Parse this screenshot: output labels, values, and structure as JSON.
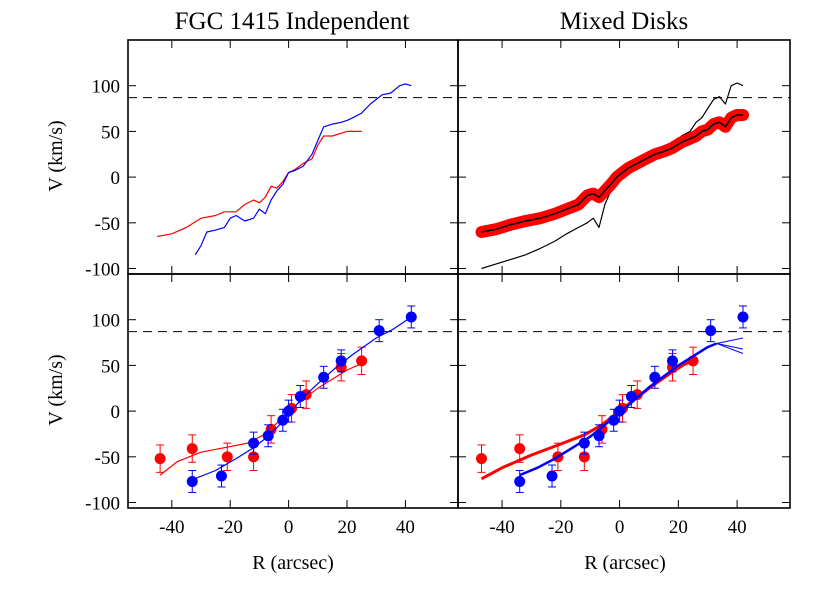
{
  "chart_data": [
    {
      "type": "line",
      "panel": "top-left",
      "title": "FGC 1415 Independent",
      "ylabel": "V (km/s)",
      "xlim": [
        -55,
        58
      ],
      "ylim": [
        -106,
        150
      ],
      "yticks": [
        -100,
        -50,
        0,
        50,
        100
      ],
      "reference_line": 87,
      "series": [
        {
          "color": "#ff0000",
          "points": [
            [
              -45,
              -65
            ],
            [
              -40,
              -62
            ],
            [
              -35,
              -55
            ],
            [
              -30,
              -45
            ],
            [
              -25,
              -42
            ],
            [
              -22,
              -38
            ],
            [
              -18,
              -38
            ],
            [
              -15,
              -30
            ],
            [
              -12,
              -25
            ],
            [
              -10,
              -28
            ],
            [
              -8,
              -22
            ],
            [
              -6,
              -10
            ],
            [
              -4,
              -12
            ],
            [
              -2,
              -5
            ],
            [
              0,
              5
            ],
            [
              2,
              8
            ],
            [
              5,
              15
            ],
            [
              8,
              20
            ],
            [
              10,
              35
            ],
            [
              12,
              45
            ],
            [
              15,
              45
            ],
            [
              18,
              48
            ],
            [
              20,
              50
            ],
            [
              22,
              50
            ],
            [
              25,
              50
            ]
          ]
        },
        {
          "color": "#0000ff",
          "points": [
            [
              -32,
              -85
            ],
            [
              -30,
              -75
            ],
            [
              -28,
              -60
            ],
            [
              -25,
              -58
            ],
            [
              -22,
              -55
            ],
            [
              -20,
              -45
            ],
            [
              -18,
              -42
            ],
            [
              -15,
              -48
            ],
            [
              -12,
              -45
            ],
            [
              -10,
              -35
            ],
            [
              -8,
              -40
            ],
            [
              -6,
              -25
            ],
            [
              -4,
              -15
            ],
            [
              -2,
              -8
            ],
            [
              0,
              5
            ],
            [
              2,
              7
            ],
            [
              5,
              12
            ],
            [
              8,
              25
            ],
            [
              10,
              40
            ],
            [
              12,
              55
            ],
            [
              15,
              58
            ],
            [
              18,
              60
            ],
            [
              20,
              62
            ],
            [
              22,
              65
            ],
            [
              25,
              70
            ],
            [
              28,
              80
            ],
            [
              30,
              85
            ],
            [
              32,
              90
            ],
            [
              35,
              92
            ],
            [
              38,
              100
            ],
            [
              40,
              102
            ],
            [
              42,
              100
            ]
          ]
        }
      ]
    },
    {
      "type": "line",
      "panel": "top-right",
      "title": "Mixed Disks",
      "xlim": [
        -55,
        58
      ],
      "ylim": [
        -106,
        150
      ],
      "reference_line": 87,
      "series": [
        {
          "color": "#000000",
          "points": [
            [
              -47,
              -100
            ],
            [
              -42,
              -95
            ],
            [
              -37,
              -90
            ],
            [
              -32,
              -85
            ],
            [
              -27,
              -78
            ],
            [
              -22,
              -70
            ],
            [
              -18,
              -62
            ],
            [
              -14,
              -55
            ],
            [
              -11,
              -50
            ],
            [
              -9,
              -45
            ],
            [
              -7,
              -55
            ],
            [
              -5,
              -30
            ],
            [
              -3,
              -15
            ],
            [
              -1,
              0
            ],
            [
              1,
              5
            ],
            [
              3,
              8
            ],
            [
              6,
              10
            ],
            [
              9,
              15
            ],
            [
              12,
              20
            ],
            [
              15,
              25
            ],
            [
              18,
              35
            ],
            [
              21,
              45
            ],
            [
              24,
              50
            ],
            [
              26,
              60
            ],
            [
              28,
              65
            ],
            [
              30,
              75
            ],
            [
              32,
              85
            ],
            [
              34,
              88
            ],
            [
              36,
              80
            ],
            [
              38,
              100
            ],
            [
              40,
              103
            ],
            [
              42,
              100
            ]
          ]
        },
        {
          "color": "#ff0000",
          "band": 6,
          "points": [
            [
              -47,
              -60
            ],
            [
              -42,
              -57
            ],
            [
              -37,
              -52
            ],
            [
              -32,
              -48
            ],
            [
              -27,
              -45
            ],
            [
              -22,
              -40
            ],
            [
              -18,
              -35
            ],
            [
              -14,
              -30
            ],
            [
              -11,
              -20
            ],
            [
              -9,
              -18
            ],
            [
              -7,
              -22
            ],
            [
              -5,
              -15
            ],
            [
              -3,
              -8
            ],
            [
              -1,
              0
            ],
            [
              1,
              5
            ],
            [
              3,
              10
            ],
            [
              6,
              15
            ],
            [
              9,
              20
            ],
            [
              12,
              25
            ],
            [
              15,
              28
            ],
            [
              18,
              32
            ],
            [
              21,
              38
            ],
            [
              24,
              42
            ],
            [
              26,
              45
            ],
            [
              28,
              50
            ],
            [
              30,
              52
            ],
            [
              32,
              58
            ],
            [
              34,
              60
            ],
            [
              36,
              55
            ],
            [
              38,
              65
            ],
            [
              40,
              68
            ],
            [
              42,
              68
            ]
          ]
        }
      ]
    },
    {
      "type": "scatter",
      "panel": "bottom-left",
      "xlabel": "R (arcsec)",
      "ylabel": "V (km/s)",
      "xlim": [
        -55,
        58
      ],
      "ylim": [
        -106,
        150
      ],
      "xticks": [
        -40,
        -20,
        0,
        20,
        40
      ],
      "yticks": [
        -100,
        -50,
        0,
        50,
        100
      ],
      "reference_line": 87,
      "series": [
        {
          "color": "#ff0000",
          "points": [
            [
              -44,
              -52
            ],
            [
              -33,
              -41
            ],
            [
              -21,
              -50
            ],
            [
              -12,
              -50
            ],
            [
              -6,
              -20
            ],
            [
              1,
              3
            ],
            [
              6,
              18
            ],
            [
              18,
              48
            ],
            [
              25,
              55
            ]
          ],
          "errors": 15,
          "fit": [
            [
              -44,
              -70
            ],
            [
              -38,
              -55
            ],
            [
              -30,
              -45
            ],
            [
              -22,
              -40
            ],
            [
              -14,
              -35
            ],
            [
              -8,
              -25
            ],
            [
              -3,
              -10
            ],
            [
              1,
              3
            ],
            [
              5,
              13
            ],
            [
              10,
              25
            ],
            [
              15,
              35
            ],
            [
              20,
              45
            ],
            [
              25,
              52
            ]
          ]
        },
        {
          "color": "#0000ff",
          "points": [
            [
              -33,
              -77
            ],
            [
              -23,
              -71
            ],
            [
              -12,
              -35
            ],
            [
              -7,
              -27
            ],
            [
              -2,
              -10
            ],
            [
              0,
              0
            ],
            [
              4,
              16
            ],
            [
              12,
              37
            ],
            [
              18,
              55
            ],
            [
              31,
              88
            ],
            [
              42,
              103
            ]
          ],
          "errors": 12,
          "fit": [
            [
              -33,
              -75
            ],
            [
              -25,
              -65
            ],
            [
              -18,
              -52
            ],
            [
              -12,
              -40
            ],
            [
              -8,
              -30
            ],
            [
              -4,
              -18
            ],
            [
              0,
              -4
            ],
            [
              4,
              12
            ],
            [
              10,
              30
            ],
            [
              16,
              47
            ],
            [
              22,
              62
            ],
            [
              30,
              80
            ],
            [
              36,
              90
            ],
            [
              42,
              103
            ]
          ]
        }
      ]
    },
    {
      "type": "scatter",
      "panel": "bottom-right",
      "xlabel": "R (arcsec)",
      "xlim": [
        -55,
        58
      ],
      "ylim": [
        -106,
        150
      ],
      "xticks": [
        -40,
        -20,
        0,
        20,
        40
      ],
      "reference_line": 87,
      "series": [
        {
          "color": "#ff0000",
          "points": [
            [
              -47,
              -52
            ],
            [
              -34,
              -41
            ],
            [
              -21,
              -50
            ],
            [
              -12,
              -50
            ],
            [
              -6,
              -20
            ],
            [
              1,
              3
            ],
            [
              6,
              18
            ],
            [
              18,
              48
            ],
            [
              25,
              55
            ]
          ],
          "errors": 15,
          "fit": [
            [
              -47,
              -74
            ],
            [
              -40,
              -62
            ],
            [
              -30,
              -48
            ],
            [
              -20,
              -36
            ],
            [
              -12,
              -26
            ],
            [
              -6,
              -15
            ],
            [
              -2,
              -5
            ],
            [
              2,
              5
            ],
            [
              6,
              15
            ],
            [
              10,
              25
            ],
            [
              14,
              34
            ],
            [
              18,
              43
            ],
            [
              22,
              51
            ],
            [
              25,
              55
            ]
          ],
          "fit_width": 3
        },
        {
          "color": "#0000ff",
          "points": [
            [
              -34,
              -77
            ],
            [
              -23,
              -71
            ],
            [
              -12,
              -35
            ],
            [
              -7,
              -27
            ],
            [
              -2,
              -10
            ],
            [
              0,
              0
            ],
            [
              4,
              16
            ],
            [
              12,
              37
            ],
            [
              18,
              55
            ],
            [
              31,
              88
            ],
            [
              42,
              103
            ]
          ],
          "errors": 12,
          "fit": [
            [
              -34,
              -70
            ],
            [
              -28,
              -62
            ],
            [
              -22,
              -52
            ],
            [
              -16,
              -40
            ],
            [
              -10,
              -28
            ],
            [
              -5,
              -15
            ],
            [
              0,
              -2
            ],
            [
              5,
              12
            ],
            [
              10,
              26
            ],
            [
              15,
              38
            ],
            [
              20,
              50
            ],
            [
              25,
              60
            ],
            [
              30,
              70
            ],
            [
              33,
              74
            ]
          ],
          "fit_width": 2.5,
          "fan": [
            [
              33,
              74
            ],
            [
              42,
              80
            ],
            [
              42,
              68
            ],
            [
              42,
              63
            ]
          ]
        }
      ]
    }
  ]
}
